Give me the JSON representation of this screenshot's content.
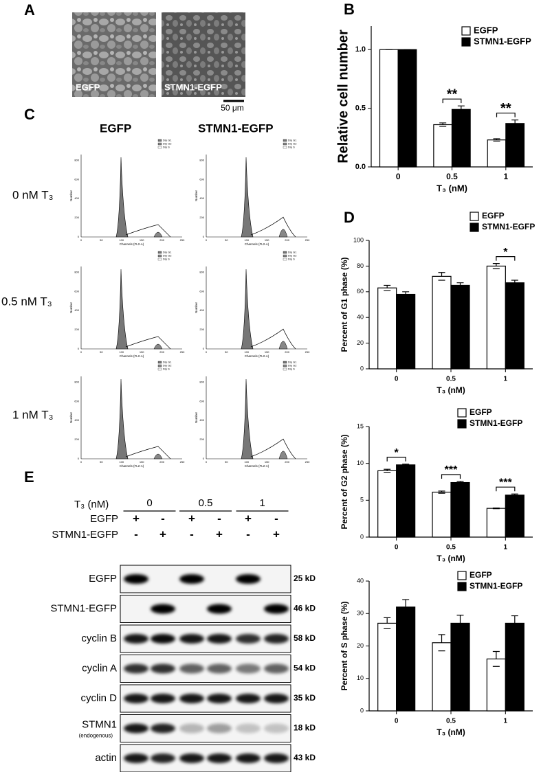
{
  "panel_labels": [
    "A",
    "B",
    "C",
    "D",
    "E"
  ],
  "panel_A": {
    "images": [
      "EGFP",
      "STMN1-EGFP"
    ],
    "scale_bar": "50 μm"
  },
  "panel_C": {
    "columns": [
      "EGFP",
      "STMN1-EGFP"
    ],
    "rows": [
      "0 nM T₃",
      "0.5 nM T₃",
      "1 nM T₃"
    ],
    "histogram": {
      "x_label": "Channels (FL2-A)",
      "y_label": "Number",
      "x_ticks": [
        "0",
        "50",
        "100",
        "150",
        "200",
        "250"
      ],
      "y_ticks": [
        "0",
        "200",
        "400",
        "600",
        "800"
      ],
      "legend": [
        "Dip G1",
        "Dip G2",
        "Dip S"
      ]
    }
  },
  "chart_data": [
    {
      "type": "bar",
      "y_label": "Relative cell number",
      "x_label": "T₃ (nM)",
      "categories": [
        "0",
        "0.5",
        "1"
      ],
      "series": [
        {
          "name": "EGFP",
          "color": "#ffffff",
          "values": [
            1.0,
            0.36,
            0.23
          ],
          "errors": [
            0,
            0.015,
            0.01
          ]
        },
        {
          "name": "STMN1-EGFP",
          "color": "#000000",
          "values": [
            1.0,
            0.49,
            0.37
          ],
          "errors": [
            0,
            0.03,
            0.03
          ]
        }
      ],
      "ylim": [
        0,
        1.2
      ],
      "yticks": [
        {
          "value": 0,
          "label": "0.0"
        },
        {
          "value": 0.5,
          "label": "0.5"
        },
        {
          "value": 1,
          "label": "1.0"
        }
      ],
      "annotations": [
        {
          "text": "**",
          "category": "0.5"
        },
        {
          "text": "**",
          "category": "1"
        }
      ]
    },
    {
      "type": "bar",
      "y_label": "Percent of G1 phase (%)",
      "x_label": "T₃ (nM)",
      "categories": [
        "0",
        "0.5",
        "1"
      ],
      "series": [
        {
          "name": "EGFP",
          "color": "#ffffff",
          "values": [
            63,
            72,
            80
          ],
          "errors": [
            2,
            3,
            2
          ]
        },
        {
          "name": "STMN1-EGFP",
          "color": "#000000",
          "values": [
            58,
            65,
            67
          ],
          "errors": [
            2,
            2,
            2
          ]
        }
      ],
      "ylim": [
        0,
        100
      ],
      "yticks": [
        0,
        20,
        40,
        60,
        80,
        100
      ],
      "annotations": [
        {
          "text": "*",
          "category": "1"
        }
      ]
    },
    {
      "type": "bar",
      "y_label": "Percent of G2 phase (%)",
      "x_label": "T₃ (nM)",
      "categories": [
        "0",
        "0.5",
        "1"
      ],
      "series": [
        {
          "name": "EGFP",
          "color": "#ffffff",
          "values": [
            9.0,
            6.1,
            3.9
          ],
          "errors": [
            0.2,
            0.15,
            0.05
          ]
        },
        {
          "name": "STMN1-EGFP",
          "color": "#000000",
          "values": [
            9.8,
            7.4,
            5.7
          ],
          "errors": [
            0.1,
            0.15,
            0.15
          ]
        }
      ],
      "ylim": [
        0,
        15
      ],
      "yticks": [
        0,
        5,
        10,
        15
      ],
      "annotations": [
        {
          "text": "*",
          "category": "0"
        },
        {
          "text": "***",
          "category": "0.5"
        },
        {
          "text": "***",
          "category": "1"
        }
      ]
    },
    {
      "type": "bar",
      "y_label": "Percent of S phase (%)",
      "x_label": "T₃ (nM)",
      "categories": [
        "0",
        "0.5",
        "1"
      ],
      "series": [
        {
          "name": "EGFP",
          "color": "#ffffff",
          "values": [
            27,
            21,
            16
          ],
          "errors": [
            1.7,
            2.5,
            2.3
          ]
        },
        {
          "name": "STMN1-EGFP",
          "color": "#000000",
          "values": [
            32,
            27,
            27
          ],
          "errors": [
            2.3,
            2.5,
            2.3
          ]
        }
      ],
      "ylim": [
        0,
        40
      ],
      "yticks": [
        0,
        10,
        20,
        30,
        40
      ],
      "annotations": []
    }
  ],
  "panel_E": {
    "dose_header": "T₃ (nM)",
    "doses": [
      "0",
      "0.5",
      "1"
    ],
    "conditions": [
      {
        "name": "EGFP",
        "signs": [
          "+",
          "-",
          "+",
          "-",
          "+",
          "-"
        ]
      },
      {
        "name": "STMN1-EGFP",
        "signs": [
          "-",
          "+",
          "-",
          "+",
          "-",
          "+"
        ]
      }
    ],
    "blots": [
      {
        "name": "EGFP",
        "size": "25 kD"
      },
      {
        "name": "STMN1-EGFP",
        "size": "46 kD"
      },
      {
        "name": "cyclin B",
        "size": "58 kD"
      },
      {
        "name": "cyclin A",
        "size": "54 kD"
      },
      {
        "name": "cyclin D",
        "size": "35 kD"
      },
      {
        "name": "STMN1",
        "note": "(endogenous)",
        "size": "18 kD"
      },
      {
        "name": "actin",
        "size": "43 kD"
      }
    ]
  }
}
